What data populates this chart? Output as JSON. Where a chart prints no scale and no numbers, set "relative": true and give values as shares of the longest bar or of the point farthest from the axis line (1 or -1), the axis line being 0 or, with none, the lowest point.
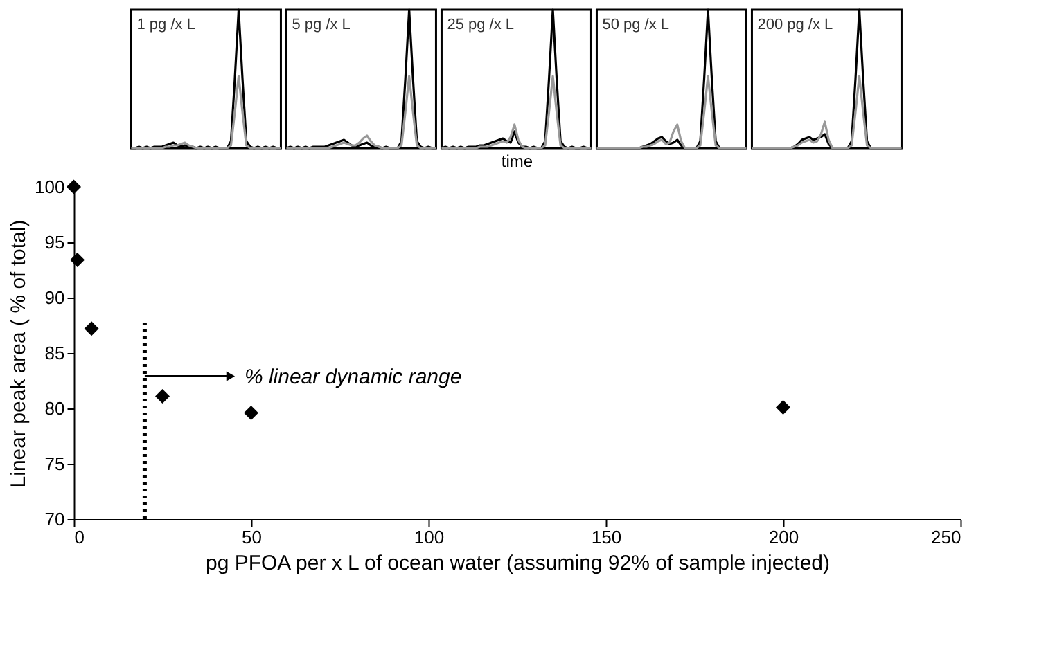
{
  "chart_data": [
    {
      "type": "line",
      "relative": true,
      "annotations": [
        "1 pg /x L"
      ],
      "marker": "none",
      "categories": [
        null,
        null,
        null,
        null,
        null,
        null,
        null,
        null,
        null,
        null,
        null,
        null,
        null,
        null,
        null,
        null,
        null,
        null,
        null,
        null,
        null,
        null,
        null,
        null,
        null,
        null,
        null,
        null,
        null,
        null,
        null,
        null,
        null,
        null,
        null,
        null,
        null,
        null,
        null,
        null
      ],
      "series": [
        {
          "color": "#000000",
          "values": [
            0,
            0,
            0.01,
            0,
            0.01,
            0,
            0.01,
            0.01,
            0.01,
            0.02,
            0.03,
            0.04,
            0.02,
            0.01,
            0.02,
            0.01,
            0.01,
            0,
            0.01,
            0,
            0.01,
            0,
            0.01,
            0,
            0,
            0,
            0.05,
            0.5,
            1,
            0.5,
            0.05,
            0.01,
            0,
            0.01,
            0,
            0.01,
            0,
            0.01,
            0,
            0
          ]
        },
        {
          "color": "#999999",
          "values": [
            0,
            0,
            0,
            0,
            0,
            0,
            0,
            0,
            0,
            0.01,
            0.01,
            0.02,
            0.02,
            0.03,
            0.04,
            0.02,
            0.01,
            0,
            0,
            0,
            0,
            0,
            0,
            0,
            0,
            0,
            0.02,
            0.26,
            0.52,
            0.26,
            0.02,
            0,
            0,
            0,
            0,
            0,
            0,
            0,
            0,
            0
          ]
        }
      ]
    },
    {
      "type": "line",
      "relative": true,
      "annotations": [
        "5 pg  /x L"
      ],
      "marker": "none",
      "categories": [
        null,
        null,
        null,
        null,
        null,
        null,
        null,
        null,
        null,
        null,
        null,
        null,
        null,
        null,
        null,
        null,
        null,
        null,
        null,
        null,
        null,
        null,
        null,
        null,
        null,
        null,
        null,
        null,
        null,
        null,
        null,
        null,
        null,
        null,
        null,
        null,
        null,
        null,
        null,
        null
      ],
      "series": [
        {
          "color": "#000000",
          "values": [
            0,
            0.01,
            0,
            0.01,
            0,
            0.01,
            0,
            0.01,
            0.01,
            0.01,
            0.01,
            0.02,
            0.03,
            0.04,
            0.05,
            0.06,
            0.04,
            0.02,
            0.01,
            0.02,
            0.03,
            0.04,
            0.02,
            0.01,
            0.01,
            0,
            0.01,
            0,
            0,
            0,
            0.05,
            0.5,
            1,
            0.5,
            0.05,
            0.01,
            0,
            0.01,
            0,
            0
          ]
        },
        {
          "color": "#999999",
          "values": [
            0,
            0,
            0,
            0,
            0,
            0,
            0,
            0,
            0,
            0,
            0,
            0,
            0.01,
            0.02,
            0.03,
            0.04,
            0.03,
            0.02,
            0.02,
            0.04,
            0.07,
            0.09,
            0.05,
            0.02,
            0.01,
            0,
            0,
            0,
            0,
            0,
            0.02,
            0.26,
            0.52,
            0.26,
            0.02,
            0,
            0,
            0,
            0,
            0
          ]
        }
      ]
    },
    {
      "type": "line",
      "relative": true,
      "annotations": [
        "25 pg  /x L"
      ],
      "xlabel": "time",
      "marker": "none",
      "categories": [
        null,
        null,
        null,
        null,
        null,
        null,
        null,
        null,
        null,
        null,
        null,
        null,
        null,
        null,
        null,
        null,
        null,
        null,
        null,
        null,
        null,
        null,
        null,
        null,
        null,
        null,
        null,
        null,
        null,
        null,
        null,
        null,
        null,
        null,
        null,
        null,
        null,
        null,
        null,
        null
      ],
      "series": [
        {
          "color": "#000000",
          "values": [
            0,
            0.01,
            0,
            0.01,
            0,
            0.01,
            0,
            0.01,
            0.01,
            0.01,
            0.02,
            0.02,
            0.03,
            0.04,
            0.05,
            0.06,
            0.07,
            0.05,
            0.04,
            0.12,
            0.04,
            0.01,
            0.01,
            0,
            0.01,
            0,
            0,
            0.05,
            0.5,
            1,
            0.5,
            0.05,
            0.01,
            0,
            0.01,
            0,
            0,
            0.01,
            0,
            0
          ]
        },
        {
          "color": "#999999",
          "values": [
            0,
            0,
            0,
            0,
            0,
            0,
            0,
            0,
            0,
            0,
            0.01,
            0.01,
            0.01,
            0.02,
            0.03,
            0.04,
            0.05,
            0.04,
            0.08,
            0.17,
            0.06,
            0.01,
            0,
            0,
            0,
            0,
            0,
            0.02,
            0.26,
            0.52,
            0.26,
            0.02,
            0,
            0,
            0,
            0,
            0,
            0,
            0,
            0
          ]
        }
      ]
    },
    {
      "type": "line",
      "relative": true,
      "annotations": [
        "50 pg  /x L"
      ],
      "marker": "none",
      "categories": [
        null,
        null,
        null,
        null,
        null,
        null,
        null,
        null,
        null,
        null,
        null,
        null,
        null,
        null,
        null,
        null,
        null,
        null,
        null,
        null,
        null,
        null,
        null,
        null,
        null,
        null,
        null,
        null,
        null,
        null,
        null,
        null,
        null,
        null,
        null,
        null,
        null,
        null,
        null,
        null
      ],
      "series": [
        {
          "color": "#000000",
          "values": [
            0,
            0,
            0,
            0,
            0,
            0,
            0,
            0,
            0,
            0,
            0,
            0,
            0.01,
            0.02,
            0.03,
            0.05,
            0.07,
            0.08,
            0.05,
            0.03,
            0.04,
            0.06,
            0.02,
            0,
            0,
            0,
            0,
            0.05,
            0.5,
            1,
            0.5,
            0.05,
            0,
            0,
            0,
            0,
            0,
            0,
            0,
            0
          ]
        },
        {
          "color": "#999999",
          "values": [
            0,
            0,
            0,
            0,
            0,
            0,
            0,
            0,
            0,
            0,
            0,
            0,
            0.01,
            0.01,
            0.02,
            0.03,
            0.05,
            0.06,
            0.03,
            0.04,
            0.12,
            0.17,
            0.05,
            0,
            0,
            0,
            0,
            0.02,
            0.26,
            0.52,
            0.26,
            0.02,
            0,
            0,
            0,
            0,
            0,
            0,
            0,
            0
          ]
        }
      ]
    },
    {
      "type": "line",
      "relative": true,
      "annotations": [
        "200 pg  /x L"
      ],
      "marker": "none",
      "categories": [
        null,
        null,
        null,
        null,
        null,
        null,
        null,
        null,
        null,
        null,
        null,
        null,
        null,
        null,
        null,
        null,
        null,
        null,
        null,
        null,
        null,
        null,
        null,
        null,
        null,
        null,
        null,
        null,
        null,
        null,
        null,
        null,
        null,
        null,
        null,
        null,
        null,
        null,
        null,
        null
      ],
      "series": [
        {
          "color": "#000000",
          "values": [
            0,
            0,
            0,
            0,
            0,
            0,
            0,
            0,
            0,
            0,
            0,
            0.01,
            0.03,
            0.06,
            0.07,
            0.08,
            0.06,
            0.07,
            0.08,
            0.1,
            0.03,
            0,
            0,
            0,
            0,
            0,
            0.05,
            0.5,
            1,
            0.5,
            0.05,
            0,
            0,
            0,
            0,
            0,
            0,
            0,
            0,
            0
          ]
        },
        {
          "color": "#999999",
          "values": [
            0,
            0,
            0,
            0,
            0,
            0,
            0,
            0,
            0,
            0,
            0,
            0.01,
            0.02,
            0.04,
            0.05,
            0.06,
            0.04,
            0.05,
            0.1,
            0.19,
            0.06,
            0,
            0,
            0,
            0,
            0,
            0.02,
            0.26,
            0.52,
            0.26,
            0.02,
            0,
            0,
            0,
            0,
            0,
            0,
            0,
            0,
            0
          ]
        }
      ]
    },
    {
      "type": "scatter",
      "xlabel": "pg PFOA per x L of ocean water (assuming 92% of sample injected)",
      "ylabel": "Linear peak area ( % of total)",
      "grid": false,
      "marker": "diamond",
      "xlim": [
        0,
        250
      ],
      "xticks": [
        0,
        50,
        100,
        150,
        200,
        250
      ],
      "ylim": [
        70,
        100
      ],
      "yticks": [
        70,
        75,
        80,
        85,
        90,
        95,
        100
      ],
      "x": [
        0,
        1,
        5,
        25,
        50,
        200
      ],
      "series": [
        {
          "color": "#000000",
          "values": [
            100,
            93.4,
            87.2,
            81.1,
            79.6,
            80.1
          ]
        }
      ],
      "ref_lines": [
        {
          "axis": "x",
          "value": 20,
          "label": "% linear dynamic range",
          "line_style": "dotted",
          "color": "#000000"
        }
      ]
    }
  ]
}
